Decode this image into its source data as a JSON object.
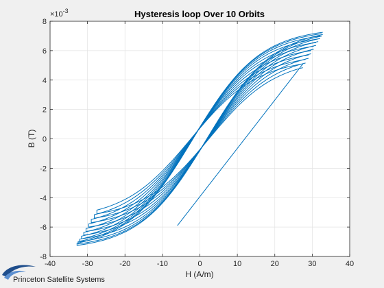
{
  "chart_data": {
    "type": "line",
    "title": "Hysteresis loop Over 10 Orbits",
    "xlabel": "H (A/m)",
    "ylabel": "B (T)",
    "y_exponent_base": "×10",
    "y_exponent_power": "-3",
    "xlim": [
      -40,
      40
    ],
    "ylim": [
      -8,
      8
    ],
    "xticks": [
      -40,
      -30,
      -20,
      -10,
      0,
      10,
      20,
      30,
      40
    ],
    "yticks": [
      -8,
      -6,
      -4,
      -2,
      0,
      2,
      4,
      6,
      8
    ],
    "grid": true,
    "line_color": "#0072BD",
    "series": [
      {
        "initial_segment": {
          "x": [
            -6,
            27.5
          ],
          "y": [
            -5.9,
            5.1
          ]
        },
        "loops": [
          {
            "h": 27.5,
            "b": 5.1,
            "a": 2.4
          },
          {
            "h": 28.2,
            "b": 5.4,
            "a": 2.3
          },
          {
            "h": 29.0,
            "b": 5.7,
            "a": 2.2
          },
          {
            "h": 29.7,
            "b": 6.0,
            "a": 2.15
          },
          {
            "h": 30.4,
            "b": 6.3,
            "a": 2.1
          },
          {
            "h": 31.0,
            "b": 6.55,
            "a": 2.05
          },
          {
            "h": 31.6,
            "b": 6.8,
            "a": 2.0
          },
          {
            "h": 32.1,
            "b": 7.0,
            "a": 1.95
          },
          {
            "h": 32.5,
            "b": 7.15,
            "a": 1.9
          },
          {
            "h": 32.8,
            "b": 7.25,
            "a": 1.85
          }
        ]
      }
    ]
  },
  "branding": {
    "company": "Princeton Satellite Systems",
    "logo_color": "#1f4e8c"
  }
}
